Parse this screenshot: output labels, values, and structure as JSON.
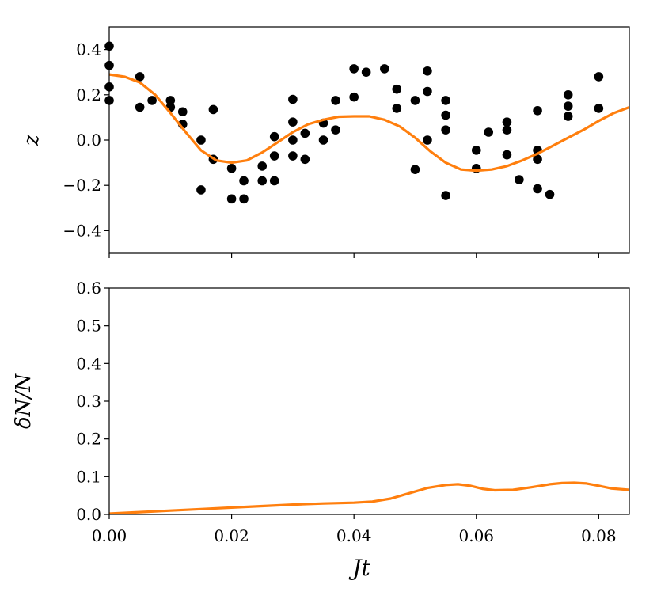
{
  "chart_data": [
    {
      "type": "scatter",
      "ylabel": "z",
      "xlim": [
        0.0,
        0.085
      ],
      "ylim": [
        -0.5,
        0.5
      ],
      "yticks": [
        0.4,
        0.2,
        0.0,
        -0.2,
        -0.4
      ],
      "ytick_labels": [
        "0.4",
        "0.2",
        "0.0",
        "−0.2",
        "−0.4"
      ],
      "xticks": [
        0.0,
        0.02,
        0.04,
        0.06,
        0.08
      ],
      "grid": false,
      "colors": {
        "points": "#000000",
        "line": "#ff7f0e"
      },
      "series": [
        {
          "kind": "points",
          "x": [
            0.0,
            0.0,
            0.0,
            0.0,
            0.005,
            0.005,
            0.007,
            0.01,
            0.01,
            0.012,
            0.012,
            0.015,
            0.015,
            0.017,
            0.017,
            0.02,
            0.02,
            0.022,
            0.022,
            0.025,
            0.025,
            0.027,
            0.027,
            0.027,
            0.03,
            0.03,
            0.03,
            0.03,
            0.032,
            0.032,
            0.035,
            0.035,
            0.037,
            0.037,
            0.04,
            0.04,
            0.042,
            0.045,
            0.047,
            0.047,
            0.05,
            0.05,
            0.052,
            0.052,
            0.052,
            0.055,
            0.055,
            0.055,
            0.055,
            0.06,
            0.06,
            0.062,
            0.065,
            0.065,
            0.065,
            0.067,
            0.07,
            0.07,
            0.07,
            0.07,
            0.072,
            0.075,
            0.075,
            0.075,
            0.08,
            0.08
          ],
          "y": [
            0.415,
            0.33,
            0.235,
            0.175,
            0.28,
            0.145,
            0.175,
            0.175,
            0.145,
            0.125,
            0.07,
            0.0,
            -0.22,
            0.135,
            -0.085,
            -0.125,
            -0.26,
            -0.18,
            -0.26,
            -0.115,
            -0.18,
            0.015,
            -0.07,
            -0.18,
            0.18,
            0.08,
            0.0,
            -0.07,
            0.03,
            -0.085,
            0.075,
            0.0,
            0.175,
            0.045,
            0.315,
            0.19,
            0.3,
            0.315,
            0.225,
            0.14,
            0.175,
            -0.13,
            0.305,
            0.215,
            0.0,
            0.175,
            0.11,
            0.045,
            -0.245,
            -0.045,
            -0.125,
            0.035,
            0.08,
            0.045,
            -0.065,
            -0.175,
            0.13,
            -0.045,
            -0.085,
            -0.215,
            -0.24,
            0.2,
            0.15,
            0.105,
            0.28,
            0.14
          ]
        },
        {
          "kind": "line",
          "x": [
            0.0,
            0.0025,
            0.005,
            0.0075,
            0.01,
            0.0125,
            0.015,
            0.0175,
            0.02,
            0.0225,
            0.025,
            0.0275,
            0.03,
            0.0325,
            0.035,
            0.0375,
            0.04,
            0.0425,
            0.045,
            0.0475,
            0.05,
            0.0525,
            0.055,
            0.0575,
            0.06,
            0.0625,
            0.065,
            0.0675,
            0.07,
            0.0725,
            0.075,
            0.0775,
            0.08,
            0.0825,
            0.085
          ],
          "y": [
            0.29,
            0.28,
            0.255,
            0.2,
            0.12,
            0.035,
            -0.045,
            -0.09,
            -0.1,
            -0.09,
            -0.055,
            -0.01,
            0.035,
            0.07,
            0.09,
            0.103,
            0.105,
            0.105,
            0.09,
            0.06,
            0.01,
            -0.05,
            -0.1,
            -0.13,
            -0.135,
            -0.13,
            -0.115,
            -0.09,
            -0.06,
            -0.025,
            0.01,
            0.045,
            0.085,
            0.12,
            0.145
          ]
        }
      ]
    },
    {
      "type": "line",
      "ylabel": "δN/N",
      "xlabel": "Jt",
      "xlim": [
        0.0,
        0.085
      ],
      "ylim": [
        0.0,
        0.6
      ],
      "yticks": [
        0.6,
        0.5,
        0.4,
        0.3,
        0.2,
        0.1,
        0.0
      ],
      "ytick_labels": [
        "0.6",
        "0.5",
        "0.4",
        "0.3",
        "0.2",
        "0.1",
        "0.0"
      ],
      "xticks": [
        0.0,
        0.02,
        0.04,
        0.06,
        0.08
      ],
      "xtick_labels": [
        "0.00",
        "0.02",
        "0.04",
        "0.06",
        "0.08"
      ],
      "grid": false,
      "colors": {
        "line": "#ff7f0e"
      },
      "series": [
        {
          "kind": "line",
          "x": [
            0.0,
            0.005,
            0.01,
            0.015,
            0.02,
            0.025,
            0.03,
            0.035,
            0.04,
            0.043,
            0.046,
            0.049,
            0.052,
            0.055,
            0.057,
            0.059,
            0.061,
            0.063,
            0.066,
            0.069,
            0.072,
            0.074,
            0.076,
            0.078,
            0.08,
            0.082,
            0.085
          ],
          "y": [
            0.002,
            0.006,
            0.01,
            0.014,
            0.018,
            0.022,
            0.026,
            0.029,
            0.031,
            0.034,
            0.042,
            0.056,
            0.07,
            0.078,
            0.08,
            0.076,
            0.068,
            0.064,
            0.065,
            0.072,
            0.08,
            0.083,
            0.084,
            0.082,
            0.076,
            0.069,
            0.065
          ]
        }
      ]
    }
  ]
}
